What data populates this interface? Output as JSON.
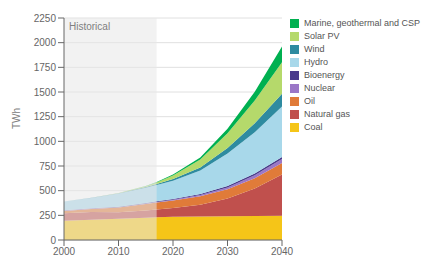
{
  "chart_data": {
    "type": "area",
    "stacked": true,
    "ylabel": "TWh",
    "x": [
      2000,
      2005,
      2010,
      2015,
      2017,
      2020,
      2025,
      2030,
      2035,
      2040
    ],
    "series": [
      {
        "name": "Coal",
        "color": "#f5c518",
        "values": [
          195,
          205,
          215,
          225,
          230,
          235,
          238,
          240,
          242,
          245
        ]
      },
      {
        "name": "Natural gas",
        "color": "#c0504d",
        "values": [
          75,
          80,
          65,
          75,
          80,
          90,
          120,
          180,
          280,
          420
        ]
      },
      {
        "name": "Oil",
        "color": "#e07b39",
        "values": [
          25,
          30,
          50,
          65,
          70,
          75,
          85,
          95,
          105,
          115
        ]
      },
      {
        "name": "Nuclear",
        "color": "#9b77c7",
        "values": [
          3,
          3,
          3,
          5,
          6,
          8,
          12,
          18,
          28,
          40
        ]
      },
      {
        "name": "Bioenergy",
        "color": "#4a3b8c",
        "values": [
          3,
          3,
          3,
          5,
          6,
          8,
          10,
          14,
          18,
          22
        ]
      },
      {
        "name": "Hydro",
        "color": "#a8d8ea",
        "values": [
          90,
          105,
          135,
          155,
          165,
          185,
          240,
          330,
          420,
          510
        ]
      },
      {
        "name": "Wind",
        "color": "#2e8ba0",
        "values": [
          0,
          1,
          3,
          7,
          10,
          18,
          30,
          55,
          90,
          130
        ]
      },
      {
        "name": "Solar PV",
        "color": "#b5d96b",
        "values": [
          0,
          0,
          2,
          8,
          15,
          35,
          80,
          150,
          230,
          320
        ]
      },
      {
        "name": "Marine, geothermal and CSP",
        "color": "#00b050",
        "values": [
          0,
          0,
          1,
          3,
          5,
          10,
          20,
          45,
          90,
          160
        ]
      }
    ],
    "xlim": [
      2000,
      2040
    ],
    "xticks": [
      2000,
      2010,
      2020,
      2030,
      2040
    ],
    "ylim": [
      0,
      2250
    ],
    "yticks": [
      0,
      250,
      500,
      750,
      1000,
      1250,
      1500,
      1750,
      2000,
      2250
    ],
    "grid": true,
    "legend": "right",
    "annotations": [
      {
        "text": "Historical",
        "x_range": [
          2000,
          2017
        ],
        "color": "#e8e8e8"
      }
    ]
  }
}
